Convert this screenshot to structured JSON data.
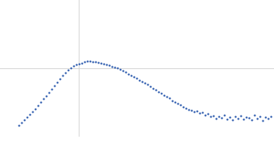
{
  "chart_data": {
    "type": "scatter",
    "color": "#3f69b5",
    "grid": true,
    "xlim": [
      0,
      400
    ],
    "ylim": [
      0,
      200
    ],
    "xticks": [
      115
    ],
    "yticks": [
      100
    ],
    "x": [
      28,
      32,
      36,
      40,
      44,
      48,
      52,
      56,
      60,
      64,
      68,
      72,
      76,
      80,
      84,
      88,
      92,
      96,
      100,
      104,
      108,
      112,
      116,
      120,
      124,
      128,
      132,
      136,
      140,
      144,
      148,
      152,
      156,
      160,
      164,
      168,
      172,
      176,
      180,
      184,
      188,
      192,
      196,
      200,
      204,
      208,
      212,
      216,
      220,
      224,
      228,
      232,
      236,
      240,
      244,
      248,
      252,
      256,
      260,
      264,
      268,
      272,
      276,
      280,
      284,
      288,
      292,
      296,
      300,
      304,
      308,
      312,
      316,
      320,
      324,
      328,
      332,
      336,
      340,
      344,
      348,
      352,
      356,
      360,
      364,
      368,
      372,
      376,
      380,
      384,
      388,
      392,
      396
    ],
    "values": [
      16,
      20,
      24,
      28,
      32,
      36,
      40,
      45,
      50,
      55,
      59,
      64,
      69,
      74,
      79,
      84,
      89,
      93,
      97,
      100,
      103,
      105,
      106,
      107,
      109,
      110,
      110,
      109,
      109,
      108,
      107,
      106,
      105,
      104,
      102,
      101,
      100,
      98,
      96,
      94,
      91,
      89,
      87,
      85,
      82,
      80,
      78,
      76,
      73,
      70,
      68,
      65,
      63,
      60,
      58,
      56,
      52,
      50,
      48,
      46,
      43,
      41,
      39,
      38,
      36,
      37,
      34,
      35,
      31,
      33,
      29,
      30,
      26,
      29,
      27,
      31,
      25,
      28,
      24,
      29,
      26,
      30,
      25,
      28,
      27,
      24,
      31,
      26,
      29,
      23,
      28,
      26,
      29
    ]
  }
}
